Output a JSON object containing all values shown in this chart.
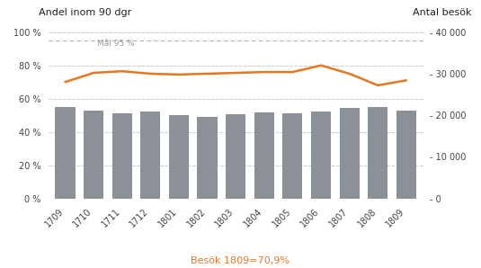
{
  "categories": [
    "1709",
    "1710",
    "1711",
    "1712",
    "1801",
    "1802",
    "1803",
    "1804",
    "1805",
    "1806",
    "1807",
    "1808",
    "1809"
  ],
  "bar_values_pct": [
    55,
    53,
    51,
    52,
    50,
    49,
    50.5,
    51.5,
    51,
    52,
    54.5,
    55,
    53
  ],
  "line_values_pct": [
    70,
    75.5,
    76.5,
    75,
    74.5,
    75,
    75.5,
    76,
    76,
    80,
    75,
    68,
    71
  ],
  "bar_color": "#8c9198",
  "line_color": "#e87722",
  "goal_line_pct": 95,
  "goal_label": "Mål 95 %",
  "goal_line_color": "#b0b0b0",
  "left_title": "Andel inom 90 dgr",
  "right_title": "Antal besök",
  "ylim_left": [
    0,
    100
  ],
  "ylim_right": [
    0,
    40000
  ],
  "left_ticks": [
    0,
    20,
    40,
    60,
    80,
    100
  ],
  "right_ticks": [
    0,
    10000,
    20000,
    30000,
    40000
  ],
  "right_tick_labels": [
    "- 0",
    "- 10 000",
    "- 20 000",
    "- 30 000",
    "- 40 000"
  ],
  "subtitle": "Besök 1809=70,9%",
  "subtitle_color": "#e87722",
  "background_color": "#ffffff",
  "grid_color": "#cccccc",
  "grid_linestyle": "--",
  "title_fontsize": 8,
  "tick_fontsize": 7,
  "subtitle_fontsize": 8
}
